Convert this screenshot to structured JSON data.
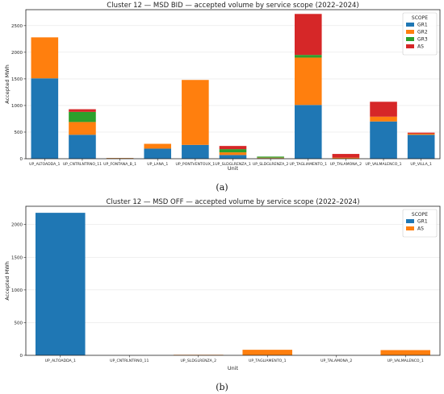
{
  "charts": [
    {
      "subfig_label": "(a)",
      "chart_data": {
        "type": "bar",
        "stacked": true,
        "title": "Cluster 12 — MSD BID — accepted volume by service scope (2022–2024)",
        "xlabel": "Unit",
        "ylabel": "Accepted MWh",
        "ylim": [
          0,
          2800
        ],
        "yticks": [
          0,
          500,
          1000,
          1500,
          2000,
          2500
        ],
        "grid": true,
        "legend": {
          "title": "SCOPE",
          "placement": "top-right"
        },
        "categories": [
          "UP_ALTOADDA_1",
          "UP_CNTRLNTRNO_11",
          "UP_FONTANA_B_1",
          "UP_LANA_1",
          "UP_PONTVENTOUX_1",
          "UP_SLDGLRENZA_1",
          "UP_SLDGLRENZA_2",
          "UP_TAGLIAMENTO_1",
          "UP_TALAMONA_2",
          "UP_VALMALENCO_1",
          "UP_VILLA_1"
        ],
        "series": [
          {
            "name": "GR1",
            "color": "#1f77b4",
            "values": [
              1510,
              450,
              10,
              190,
              260,
              70,
              10,
              1010,
              0,
              700,
              450
            ]
          },
          {
            "name": "GR2",
            "color": "#ff7f0e",
            "values": [
              770,
              240,
              5,
              90,
              1220,
              50,
              10,
              890,
              20,
              90,
              20
            ]
          },
          {
            "name": "GR3",
            "color": "#2ca02c",
            "values": [
              0,
              190,
              0,
              0,
              0,
              60,
              20,
              50,
              0,
              0,
              0
            ]
          },
          {
            "name": "AS",
            "color": "#d62728",
            "values": [
              0,
              50,
              0,
              0,
              0,
              60,
              0,
              770,
              70,
              280,
              20
            ]
          }
        ]
      }
    },
    {
      "subfig_label": "(b)",
      "chart_data": {
        "type": "bar",
        "stacked": true,
        "title": "Cluster 12 — MSD OFF — accepted volume by service scope (2022–2024)",
        "xlabel": "Unit",
        "ylabel": "Accepted MWh",
        "ylim": [
          0,
          2280
        ],
        "yticks": [
          0,
          500,
          1000,
          1500,
          2000
        ],
        "grid": true,
        "legend": {
          "title": "SCOPE",
          "placement": "top-right"
        },
        "categories": [
          "UP_ALTOADDA_1",
          "UP_CNTRLNTRNO_11",
          "UP_SLDGLRENZA_2",
          "UP_TAGLIAMENTO_1",
          "UP_TALAMONA_2",
          "UP_VALMALENCO_1"
        ],
        "series": [
          {
            "name": "GR1",
            "color": "#1f77b4",
            "values": [
              2180,
              0,
              0,
              0,
              0,
              0
            ]
          },
          {
            "name": "AS",
            "color": "#ff7f0e",
            "values": [
              0,
              0,
              8,
              85,
              0,
              80
            ]
          }
        ]
      }
    }
  ]
}
